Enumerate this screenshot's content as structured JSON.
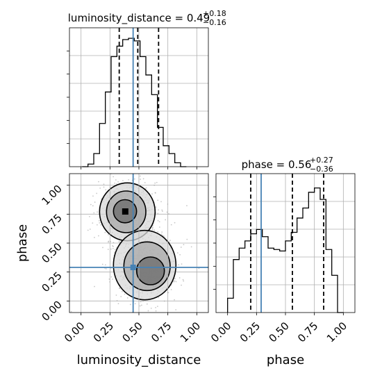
{
  "chart_data": {
    "type": "corner",
    "truth": {
      "luminosity_distance": 0.45,
      "phase": 0.29
    },
    "truth_color": "#4682b4",
    "parameters": [
      {
        "name": "luminosity_distance",
        "axis_label": "luminosity_distance",
        "title_name": "luminosity_distance",
        "title_value": "0.49",
        "title_plus": "+0.18",
        "title_minus": "−0.16",
        "range": [
          -0.1,
          1.1
        ],
        "quantiles": [
          0.33,
          0.49,
          0.67
        ],
        "tick_labels": [
          "0.00",
          "0.25",
          "0.50",
          "0.75",
          "1.00"
        ],
        "tick_values": [
          0.0,
          0.25,
          0.5,
          0.75,
          1.0
        ],
        "hist_edges": [
          0.01,
          0.06,
          0.11,
          0.16,
          0.21,
          0.26,
          0.31,
          0.36,
          0.41,
          0.46,
          0.51,
          0.56,
          0.61,
          0.66,
          0.71,
          0.76,
          0.81,
          0.86,
          0.91
        ],
        "hist_values": [
          0.0,
          0.02,
          0.1,
          0.33,
          0.57,
          0.84,
          0.92,
          0.97,
          0.98,
          0.96,
          0.84,
          0.7,
          0.55,
          0.3,
          0.16,
          0.1,
          0.03,
          0.0
        ]
      },
      {
        "name": "phase",
        "axis_label": "phase",
        "title_name": "phase",
        "title_value": "0.56",
        "title_plus": "+0.27",
        "title_minus": "−0.36",
        "range": [
          -0.1,
          1.1
        ],
        "quantiles": [
          0.2,
          0.56,
          0.83
        ],
        "tick_labels": [
          "0.00",
          "0.25",
          "0.50",
          "0.75",
          "1.00"
        ],
        "tick_values": [
          0.0,
          0.25,
          0.5,
          0.75,
          1.0
        ],
        "hist_edges": [
          0.0,
          0.05,
          0.1,
          0.15,
          0.2,
          0.25,
          0.3,
          0.35,
          0.4,
          0.45,
          0.5,
          0.55,
          0.6,
          0.65,
          0.7,
          0.75,
          0.8,
          0.85,
          0.9,
          0.95,
          1.0
        ],
        "hist_values": [
          0.1,
          0.37,
          0.45,
          0.5,
          0.55,
          0.58,
          0.53,
          0.45,
          0.44,
          0.43,
          0.5,
          0.56,
          0.66,
          0.73,
          0.84,
          0.87,
          0.79,
          0.44,
          0.26,
          0.0
        ]
      }
    ],
    "contour_levels": [
      {
        "cx": 0.4,
        "cy": 0.77,
        "rx": 0.24,
        "ry": 0.25
      },
      {
        "cx": 0.39,
        "cy": 0.77,
        "rx": 0.17,
        "ry": 0.18
      },
      {
        "cx": 0.38,
        "cy": 0.775,
        "rx": 0.1,
        "ry": 0.1
      },
      {
        "cx": 0.55,
        "cy": 0.31,
        "rx": 0.27,
        "ry": 0.3
      },
      {
        "cx": 0.57,
        "cy": 0.3,
        "rx": 0.2,
        "ry": 0.21
      },
      {
        "cx": 0.6,
        "cy": 0.26,
        "rx": 0.12,
        "ry": 0.12
      }
    ]
  }
}
